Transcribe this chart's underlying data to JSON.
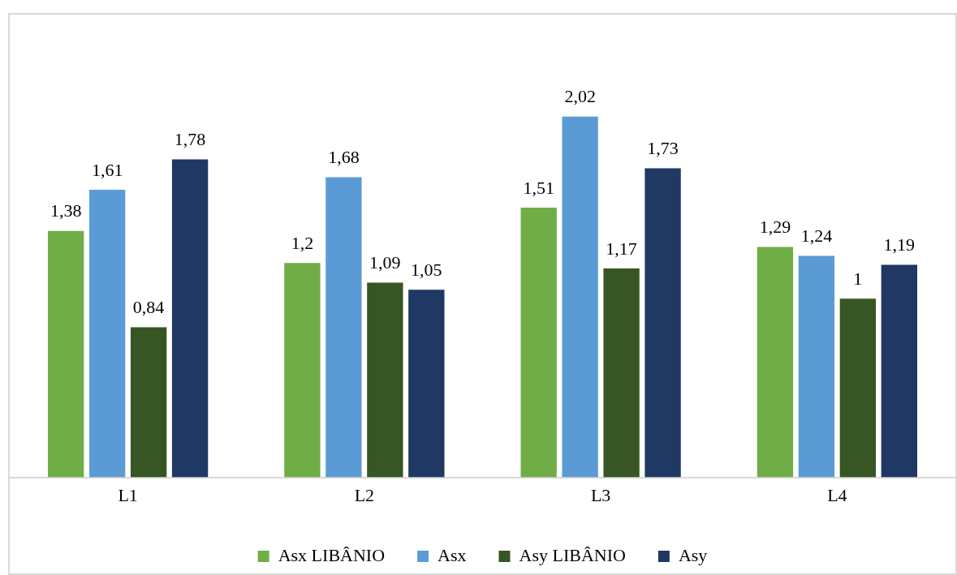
{
  "chart_data": {
    "type": "bar",
    "categories": [
      "L1",
      "L2",
      "L3",
      "L4"
    ],
    "series": [
      {
        "name": "Asx LIBÂNIO",
        "color": "#70ad47",
        "values": [
          1.38,
          1.2,
          1.51,
          1.29
        ],
        "value_labels": [
          "1,38",
          "1,2",
          "1,51",
          "1,29"
        ]
      },
      {
        "name": "Asx",
        "color": "#5b9bd5",
        "values": [
          1.61,
          1.68,
          2.02,
          1.24
        ],
        "value_labels": [
          "1,61",
          "1,68",
          "2,02",
          "1,24"
        ]
      },
      {
        "name": "Asy LIBÂNIO",
        "color": "#375623",
        "values": [
          0.84,
          1.09,
          1.17,
          1
        ],
        "value_labels": [
          "0,84",
          "1,09",
          "1,17",
          "1"
        ]
      },
      {
        "name": "Asy",
        "color": "#1f3864",
        "values": [
          1.78,
          1.05,
          1.73,
          1.19
        ],
        "value_labels": [
          "1,78",
          "1,05",
          "1,73",
          "1,19"
        ]
      }
    ],
    "legend": "bottom"
  }
}
